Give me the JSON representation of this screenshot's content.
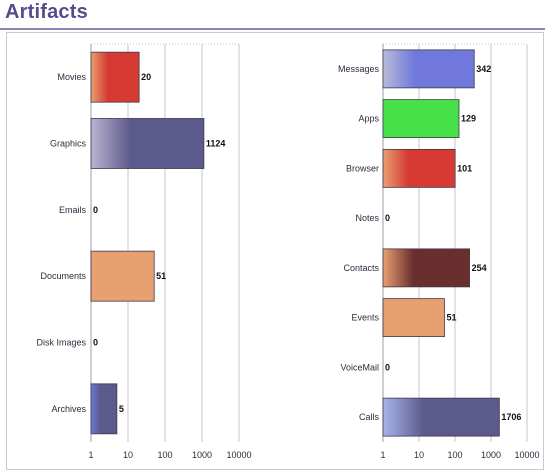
{
  "page": {
    "title": "Artifacts"
  },
  "chart_data": [
    {
      "type": "bar",
      "orientation": "horizontal",
      "xscale": "log",
      "xlim": [
        1,
        10000
      ],
      "xticks": [
        "1",
        "10",
        "100",
        "1000",
        "10000"
      ],
      "grid": true,
      "categories": [
        "Movies",
        "Graphics",
        "Emails",
        "Documents",
        "Disk Images",
        "Archives"
      ],
      "values": [
        20,
        1124,
        0,
        51,
        0,
        5
      ],
      "value_labels": [
        "20",
        "1124",
        "0",
        "51",
        "0",
        "5"
      ],
      "colors": [
        "#e8a070",
        "#5c5a8c",
        "#e8a070",
        "#e8a070",
        "#e8a070",
        "#5c5a8c"
      ],
      "color_ends": [
        "#d63a32",
        "#5c5a8c",
        "#d63a32",
        "#e8a070",
        "#d63a32",
        "#5c5a8c"
      ],
      "color_starts": [
        "#e8a070",
        "#bcb2d0",
        "#e8a070",
        "#e8a070",
        "#e8a070",
        "#6c7ad8"
      ]
    },
    {
      "type": "bar",
      "orientation": "horizontal",
      "xscale": "log",
      "xlim": [
        1,
        10000
      ],
      "xticks": [
        "1",
        "10",
        "100",
        "1000",
        "10000"
      ],
      "grid": true,
      "categories": [
        "Messages",
        "Apps",
        "Browser",
        "Notes",
        "Contacts",
        "Events",
        "VoiceMail",
        "Calls"
      ],
      "values": [
        342,
        129,
        101,
        0,
        254,
        51,
        0,
        1706
      ],
      "value_labels": [
        "342",
        "129",
        "101",
        "0",
        "254",
        "51",
        "0",
        "1706"
      ],
      "color_starts": [
        "#b8bcd8",
        "#48e048",
        "#e8a070",
        "#e8a070",
        "#e8a070",
        "#e8a070",
        "#e8a070",
        "#a8b4ec"
      ],
      "color_ends": [
        "#7078dc",
        "#48e048",
        "#d63a32",
        "#d63a32",
        "#6a2e2e",
        "#e8a070",
        "#d63a32",
        "#5c5a8c"
      ]
    }
  ]
}
